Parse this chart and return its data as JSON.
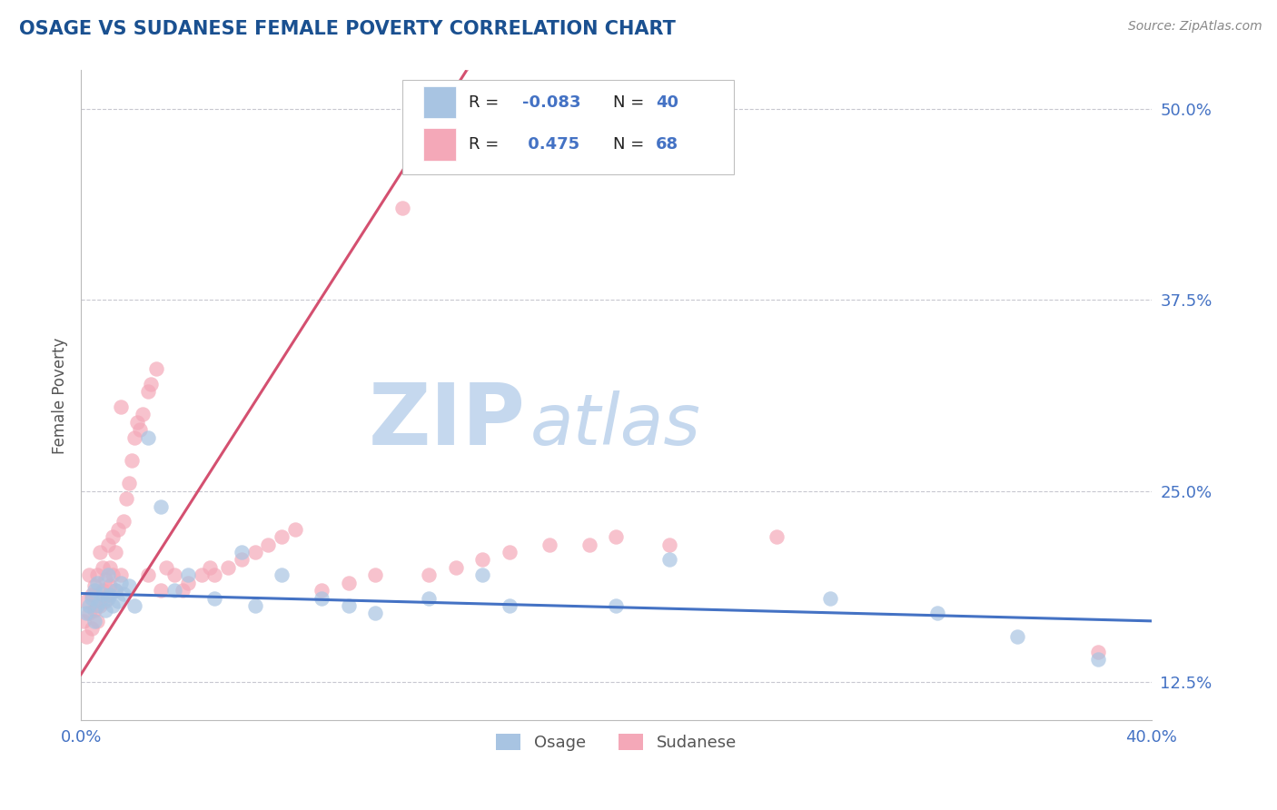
{
  "title": "OSAGE VS SUDANESE FEMALE POVERTY CORRELATION CHART",
  "source": "Source: ZipAtlas.com",
  "ylabel": "Female Poverty",
  "x_min": 0.0,
  "x_max": 0.4,
  "y_min": 0.1,
  "y_max": 0.525,
  "y_ticks": [
    0.125,
    0.25,
    0.375,
    0.5
  ],
  "y_tick_labels": [
    "12.5%",
    "25.0%",
    "37.5%",
    "50.0%"
  ],
  "x_ticks": [
    0.0,
    0.4
  ],
  "x_tick_labels": [
    "0.0%",
    "40.0%"
  ],
  "osage_R": -0.083,
  "osage_N": 40,
  "sudanese_R": 0.475,
  "sudanese_N": 68,
  "osage_color": "#a8c4e2",
  "sudanese_color": "#f4a8b8",
  "osage_line_color": "#4472c4",
  "sudanese_line_color": "#d45070",
  "sudanese_line_dash_color": "#e0a0b0",
  "watermark_zip": "ZIP",
  "watermark_atlas": "atlas",
  "watermark_color": "#c5d8ee",
  "legend_label_osage": "Osage",
  "legend_label_sudanese": "Sudanese",
  "background_color": "#ffffff",
  "grid_color": "#c8c8d0",
  "title_color": "#1a5090",
  "axis_label_color": "#555555",
  "tick_label_color": "#4472c4",
  "osage_line_y0": 0.183,
  "osage_line_y1": 0.165,
  "sudanese_line_y0": 0.13,
  "sudanese_line_y1": 0.5,
  "sudanese_line_x0": 0.0,
  "sudanese_line_x1": 0.135
}
